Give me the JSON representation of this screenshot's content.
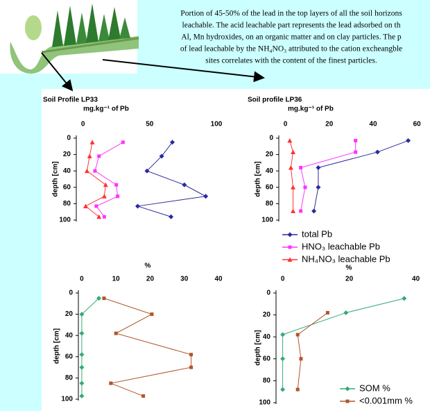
{
  "text": {
    "paragraph": [
      "Portion of 45-50% of the lead in the top layers of all the soil horizons",
      "leachable. The acid leachable part represents the lead adsorbed on th",
      "Al, Mn hydroxides, on an organic matter and on clay particles. The p",
      "of lead leachable by the NH₄NO₃ attributed to the cation excheangble",
      "sites correlates with the content of the finest particles."
    ]
  },
  "chart_data": [
    {
      "type": "line",
      "title": "Soil Profile LP33",
      "xlabel": "mg.kg⁻¹ of Pb",
      "ylabel": "depth [cm]",
      "xlim": [
        -5,
        100
      ],
      "xticks": [
        0,
        50,
        100
      ],
      "ylim": [
        0,
        100
      ],
      "yticks": [
        0,
        20,
        40,
        60,
        80,
        100
      ],
      "y_inverted": true,
      "y": [
        5,
        22,
        40,
        57,
        71,
        83,
        96
      ],
      "series": [
        {
          "color": "#2a2a9c",
          "marker": "diamond",
          "values": [
            67,
            59,
            48,
            76,
            92,
            41,
            66
          ]
        },
        {
          "color": "#ff33ff",
          "marker": "square",
          "values": [
            30,
            12,
            9,
            25,
            26,
            10,
            16
          ]
        },
        {
          "color": "#ff3333",
          "marker": "triangle",
          "values": [
            7,
            5,
            3,
            17,
            16,
            2,
            12
          ]
        }
      ]
    },
    {
      "type": "line",
      "title": "Soil profile LP36",
      "xlabel": "mg.kg⁻¹ of Pb",
      "ylabel": "depth [cm]",
      "xlim": [
        -3,
        65
      ],
      "xticks": [
        0,
        20,
        40,
        60
      ],
      "ylim": [
        0,
        100
      ],
      "yticks": [
        0,
        20,
        40,
        60,
        80,
        100
      ],
      "y_inverted": true,
      "y": [
        3,
        17,
        36,
        60,
        89
      ],
      "series": [
        {
          "name": "total Pb",
          "color": "#2a2a9c",
          "marker": "diamond",
          "values": [
            56,
            42,
            15,
            15,
            13
          ]
        },
        {
          "name": "HNO₃ leachable Pb",
          "color": "#ff33ff",
          "marker": "square",
          "values": [
            32,
            32,
            7,
            9,
            7
          ]
        },
        {
          "name": "NH₄NO₃ leachable Pb",
          "color": "#ff3333",
          "marker": "triangle",
          "values": [
            2,
            3.5,
            2.5,
            3.5,
            3.5
          ]
        }
      ],
      "legend": "below"
    },
    {
      "type": "line",
      "xlabel": "%",
      "ylabel": "depth [cm]",
      "xlim": [
        -1,
        40
      ],
      "xticks": [
        0,
        10,
        20,
        30,
        40
      ],
      "ylim": [
        0,
        100
      ],
      "yticks": [
        0,
        20,
        40,
        60,
        80,
        100
      ],
      "y_inverted": true,
      "y": [
        5,
        20,
        38,
        58,
        70,
        85,
        97
      ],
      "series": [
        {
          "color": "#33aa77",
          "marker": "diamond",
          "values": [
            5,
            0,
            0,
            0,
            0,
            0,
            0
          ]
        },
        {
          "color": "#b0552a",
          "marker": "square",
          "values": [
            6.5,
            20.5,
            10,
            32,
            32,
            8.5,
            18
          ]
        }
      ]
    },
    {
      "type": "line",
      "xlabel": "%",
      "ylabel": "depth [cm]",
      "xlim": [
        -2,
        43
      ],
      "xticks": [
        0,
        20,
        40
      ],
      "ylim": [
        0,
        100
      ],
      "yticks": [
        0,
        20,
        40,
        60,
        80,
        100
      ],
      "y_inverted": true,
      "y": [
        5,
        18,
        38,
        60,
        88
      ],
      "series": [
        {
          "name": "SOM %",
          "color": "#33aa77",
          "marker": "diamond",
          "values": [
            36.5,
            19,
            0,
            0,
            0
          ]
        },
        {
          "name": "<0.001mm %",
          "color": "#b0552a",
          "marker": "square",
          "values": [
            null,
            13.5,
            4.5,
            5.5,
            4.5
          ]
        }
      ],
      "legend": "lower right"
    }
  ]
}
